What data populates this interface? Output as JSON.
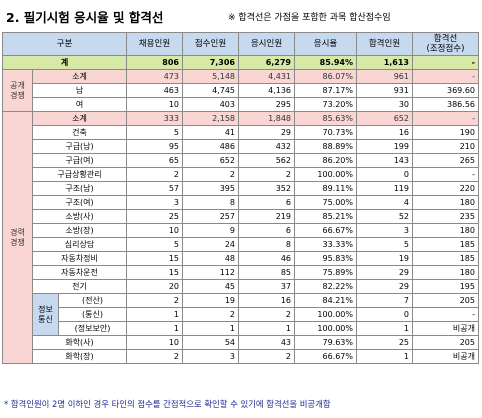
{
  "title": "2. 필기시험 응시율 및 합격선",
  "top_note": "※ 합격선은 가점을 포함한 과목 합산점수임",
  "bottom_note": "* 합격인원이 2명 이하인 경우 타인의 점수를 간접적으로 확인할 수 있기에 합격선을 비공개함",
  "headers": {
    "category": "구분",
    "recruit": "채용인원",
    "applied": "접수인원",
    "tested": "응시인원",
    "rate": "응시율",
    "passed": "합격인원",
    "cutoff": "합격선\n(조정점수)"
  },
  "total": {
    "label": "계",
    "recruit": "806",
    "applied": "7,306",
    "tested": "6,279",
    "rate": "85.94%",
    "passed": "1,613",
    "cutoff": "-"
  },
  "public": {
    "group": "공개\n경쟁",
    "subtotal": {
      "label": "소계",
      "recruit": "473",
      "applied": "5,148",
      "tested": "4,431",
      "rate": "86.07%",
      "passed": "961",
      "cutoff": "-"
    },
    "rows": [
      {
        "label": "남",
        "recruit": "463",
        "applied": "4,745",
        "tested": "4,136",
        "rate": "87.17%",
        "passed": "931",
        "cutoff": "369.60"
      },
      {
        "label": "여",
        "recruit": "10",
        "applied": "403",
        "tested": "295",
        "rate": "73.20%",
        "passed": "30",
        "cutoff": "386.56"
      }
    ]
  },
  "career": {
    "group": "경력\n경쟁",
    "subtotal": {
      "label": "소계",
      "recruit": "333",
      "applied": "2,158",
      "tested": "1,848",
      "rate": "85.63%",
      "passed": "652",
      "cutoff": "-"
    },
    "rows": [
      {
        "label": "건축",
        "recruit": "5",
        "applied": "41",
        "tested": "29",
        "rate": "70.73%",
        "passed": "16",
        "cutoff": "190"
      },
      {
        "label": "구급(남)",
        "recruit": "95",
        "applied": "486",
        "tested": "432",
        "rate": "88.89%",
        "passed": "199",
        "cutoff": "210"
      },
      {
        "label": "구급(여)",
        "recruit": "65",
        "applied": "652",
        "tested": "562",
        "rate": "86.20%",
        "passed": "143",
        "cutoff": "265"
      },
      {
        "label": "구급상황관리",
        "recruit": "2",
        "applied": "2",
        "tested": "2",
        "rate": "100.00%",
        "passed": "0",
        "cutoff": "-"
      },
      {
        "label": "구조(남)",
        "recruit": "57",
        "applied": "395",
        "tested": "352",
        "rate": "89.11%",
        "passed": "119",
        "cutoff": "220"
      },
      {
        "label": "구조(여)",
        "recruit": "3",
        "applied": "8",
        "tested": "6",
        "rate": "75.00%",
        "passed": "4",
        "cutoff": "180"
      },
      {
        "label": "소방(사)",
        "recruit": "25",
        "applied": "257",
        "tested": "219",
        "rate": "85.21%",
        "passed": "52",
        "cutoff": "235"
      },
      {
        "label": "소방(장)",
        "recruit": "10",
        "applied": "9",
        "tested": "6",
        "rate": "66.67%",
        "passed": "3",
        "cutoff": "180"
      },
      {
        "label": "심리상담",
        "recruit": "5",
        "applied": "24",
        "tested": "8",
        "rate": "33.33%",
        "passed": "5",
        "cutoff": "185"
      },
      {
        "label": "자동차정비",
        "recruit": "15",
        "applied": "48",
        "tested": "46",
        "rate": "95.83%",
        "passed": "19",
        "cutoff": "185"
      },
      {
        "label": "자동차운전",
        "recruit": "15",
        "applied": "112",
        "tested": "85",
        "rate": "75.89%",
        "passed": "29",
        "cutoff": "180"
      },
      {
        "label": "전기",
        "recruit": "20",
        "applied": "45",
        "tested": "37",
        "rate": "82.22%",
        "passed": "29",
        "cutoff": "195"
      }
    ],
    "info_group": "정보\n통신",
    "info_rows": [
      {
        "label": "(전산)",
        "recruit": "2",
        "applied": "19",
        "tested": "16",
        "rate": "84.21%",
        "passed": "7",
        "cutoff": "205"
      },
      {
        "label": "(통신)",
        "recruit": "1",
        "applied": "2",
        "tested": "2",
        "rate": "100.00%",
        "passed": "0",
        "cutoff": "-"
      },
      {
        "label": "(정보보안)",
        "recruit": "1",
        "applied": "1",
        "tested": "1",
        "rate": "100.00%",
        "passed": "1",
        "cutoff": "비공개"
      }
    ],
    "tail_rows": [
      {
        "label": "화학(사)",
        "recruit": "10",
        "applied": "54",
        "tested": "43",
        "rate": "79.63%",
        "passed": "25",
        "cutoff": "205"
      },
      {
        "label": "화학(장)",
        "recruit": "2",
        "applied": "3",
        "tested": "2",
        "rate": "66.67%",
        "passed": "1",
        "cutoff": "비공개"
      }
    ]
  }
}
